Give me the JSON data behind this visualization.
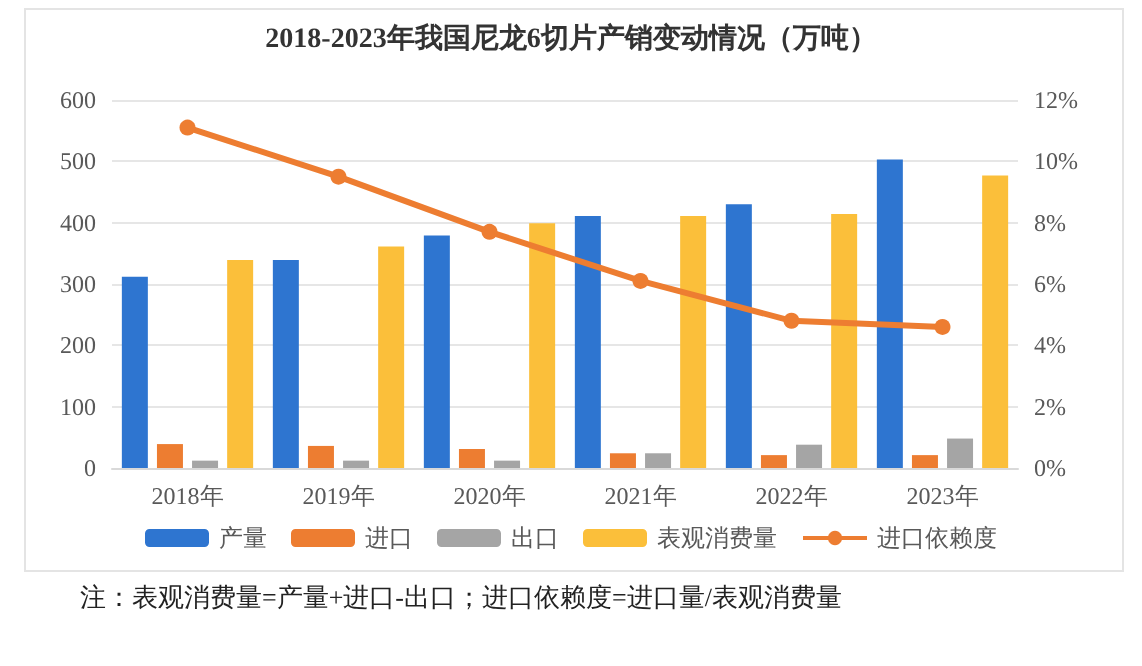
{
  "chart_data": {
    "type": "bar",
    "title": "2018-2023年我国尼龙6切片产销变动情况（万吨）",
    "categories": [
      "2018年",
      "2019年",
      "2020年",
      "2021年",
      "2022年",
      "2023年"
    ],
    "series": [
      {
        "name": "产量",
        "color": "#2e75d0",
        "values": [
          312,
          339,
          379,
          411,
          430,
          503
        ]
      },
      {
        "name": "进口",
        "color": "#ed7d31",
        "values": [
          39,
          36,
          31,
          24,
          21,
          21
        ]
      },
      {
        "name": "出口",
        "color": "#a5a5a5",
        "values": [
          12,
          12,
          12,
          24,
          38,
          48
        ]
      },
      {
        "name": "表观消费量",
        "color": "#fbbf3a",
        "values": [
          339,
          361,
          399,
          411,
          414,
          477
        ]
      },
      {
        "name": "进口依赖度",
        "type": "line",
        "axis": "y2",
        "color": "#ed7d31",
        "marker": "circle",
        "values": [
          11.1,
          9.5,
          7.7,
          6.1,
          4.8,
          4.6
        ]
      }
    ],
    "ylim": [
      0,
      600
    ],
    "yticks": [
      0,
      100,
      200,
      300,
      400,
      500,
      600
    ],
    "y2lim": [
      0,
      12
    ],
    "y2ticks": [
      {
        "value": 0,
        "label": "0%"
      },
      {
        "value": 2,
        "label": "2%"
      },
      {
        "value": 4,
        "label": "4%"
      },
      {
        "value": 6,
        "label": "6%"
      },
      {
        "value": 8,
        "label": "8%"
      },
      {
        "value": 10,
        "label": "10%"
      },
      {
        "value": 12,
        "label": "12%"
      }
    ],
    "grid": "y",
    "legend": "bottom",
    "annotations": [
      "注：表观消费量=产量+进口-出口；进口依赖度=进口量/表观消费量"
    ]
  }
}
